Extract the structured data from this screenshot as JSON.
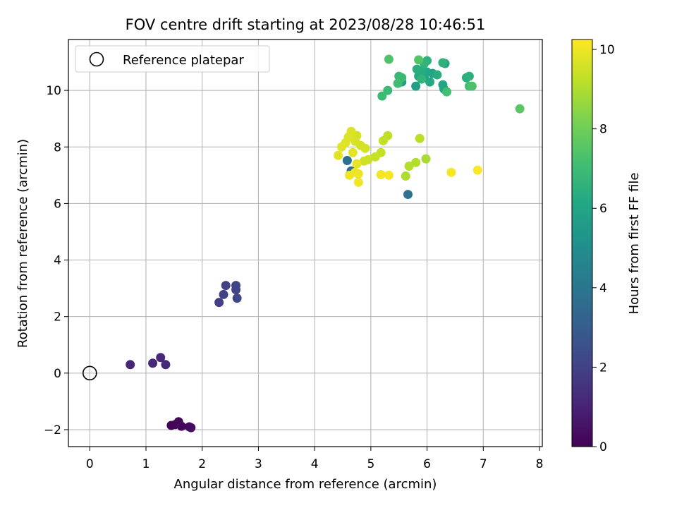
{
  "chart_data": {
    "type": "scatter",
    "title": "FOV centre drift starting at 2023/08/28 10:46:51",
    "xlabel": "Angular distance from reference (arcmin)",
    "ylabel": "Rotation from reference (arcmin)",
    "xlim": [
      -0.38,
      8.05
    ],
    "ylim": [
      -2.6,
      11.8
    ],
    "xticks": [
      "0",
      "1",
      "2",
      "3",
      "4",
      "5",
      "6",
      "7",
      "8"
    ],
    "yticks": [
      "−2",
      "0",
      "2",
      "4",
      "6",
      "8",
      "10"
    ],
    "grid": true,
    "legend": {
      "position": "top-left",
      "entries": [
        "Reference platepar"
      ]
    },
    "reference_point": {
      "x": 0,
      "y": 0
    },
    "colorbar": {
      "label": "Hours from first FF file",
      "range": [
        0,
        10.25
      ],
      "ticks": [
        "0",
        "2",
        "4",
        "6",
        "8",
        "10"
      ],
      "colormap": "viridis"
    },
    "points": [
      {
        "x": 1.45,
        "y": -1.85,
        "h": 0.05
      },
      {
        "x": 1.52,
        "y": -1.82,
        "h": 0.1
      },
      {
        "x": 1.58,
        "y": -1.72,
        "h": 0.15
      },
      {
        "x": 1.63,
        "y": -1.88,
        "h": 0.2
      },
      {
        "x": 1.77,
        "y": -1.9,
        "h": 0.25
      },
      {
        "x": 1.8,
        "y": -1.93,
        "h": 0.3
      },
      {
        "x": 0.72,
        "y": 0.3,
        "h": 1.1
      },
      {
        "x": 1.12,
        "y": 0.35,
        "h": 1.15
      },
      {
        "x": 1.26,
        "y": 0.55,
        "h": 1.2
      },
      {
        "x": 1.35,
        "y": 0.3,
        "h": 1.25
      },
      {
        "x": 2.3,
        "y": 2.5,
        "h": 1.9
      },
      {
        "x": 2.38,
        "y": 2.78,
        "h": 1.95
      },
      {
        "x": 2.42,
        "y": 3.1,
        "h": 2.0
      },
      {
        "x": 2.6,
        "y": 3.1,
        "h": 2.05
      },
      {
        "x": 2.6,
        "y": 2.95,
        "h": 2.1
      },
      {
        "x": 2.62,
        "y": 2.65,
        "h": 2.15
      },
      {
        "x": 4.58,
        "y": 7.52,
        "h": 3.7
      },
      {
        "x": 4.65,
        "y": 7.15,
        "h": 3.75
      },
      {
        "x": 5.66,
        "y": 6.32,
        "h": 3.85
      },
      {
        "x": 5.55,
        "y": 10.3,
        "h": 5.6
      },
      {
        "x": 5.8,
        "y": 10.15,
        "h": 5.7
      },
      {
        "x": 5.95,
        "y": 10.45,
        "h": 5.8
      },
      {
        "x": 6.1,
        "y": 10.6,
        "h": 5.9
      },
      {
        "x": 6.28,
        "y": 10.2,
        "h": 6.0
      },
      {
        "x": 6.3,
        "y": 10.05,
        "h": 6.05
      },
      {
        "x": 6.32,
        "y": 10.95,
        "h": 6.1
      },
      {
        "x": 6.0,
        "y": 10.65,
        "h": 6.15
      },
      {
        "x": 6.05,
        "y": 10.3,
        "h": 6.2
      },
      {
        "x": 5.85,
        "y": 10.5,
        "h": 6.25
      },
      {
        "x": 5.9,
        "y": 10.7,
        "h": 6.3
      },
      {
        "x": 6.18,
        "y": 10.55,
        "h": 6.35
      },
      {
        "x": 5.82,
        "y": 10.75,
        "h": 6.4
      },
      {
        "x": 6.7,
        "y": 10.45,
        "h": 6.45
      },
      {
        "x": 6.75,
        "y": 10.5,
        "h": 6.5
      },
      {
        "x": 6.0,
        "y": 11.05,
        "h": 6.55
      },
      {
        "x": 6.28,
        "y": 10.98,
        "h": 6.6
      },
      {
        "x": 5.95,
        "y": 10.95,
        "h": 6.65
      },
      {
        "x": 5.9,
        "y": 10.4,
        "h": 6.7
      },
      {
        "x": 5.5,
        "y": 10.5,
        "h": 6.8
      },
      {
        "x": 5.55,
        "y": 10.45,
        "h": 6.85
      },
      {
        "x": 5.3,
        "y": 10.0,
        "h": 6.9
      },
      {
        "x": 5.2,
        "y": 9.8,
        "h": 7.0
      },
      {
        "x": 5.48,
        "y": 10.25,
        "h": 7.05
      },
      {
        "x": 6.35,
        "y": 9.95,
        "h": 7.1
      },
      {
        "x": 6.75,
        "y": 10.15,
        "h": 7.2
      },
      {
        "x": 6.8,
        "y": 10.15,
        "h": 7.3
      },
      {
        "x": 5.32,
        "y": 11.1,
        "h": 7.4
      },
      {
        "x": 5.85,
        "y": 11.08,
        "h": 7.45
      },
      {
        "x": 7.65,
        "y": 9.35,
        "h": 7.6
      },
      {
        "x": 5.98,
        "y": 7.58,
        "h": 8.9
      },
      {
        "x": 5.62,
        "y": 6.97,
        "h": 9.0
      },
      {
        "x": 5.8,
        "y": 7.45,
        "h": 9.05
      },
      {
        "x": 5.68,
        "y": 7.32,
        "h": 9.1
      },
      {
        "x": 5.87,
        "y": 8.3,
        "h": 9.2
      },
      {
        "x": 5.3,
        "y": 8.4,
        "h": 9.25
      },
      {
        "x": 5.22,
        "y": 8.22,
        "h": 9.3
      },
      {
        "x": 5.18,
        "y": 7.8,
        "h": 9.35
      },
      {
        "x": 5.08,
        "y": 7.65,
        "h": 9.4
      },
      {
        "x": 4.95,
        "y": 7.55,
        "h": 9.45
      },
      {
        "x": 4.88,
        "y": 7.5,
        "h": 9.5
      },
      {
        "x": 4.82,
        "y": 8.05,
        "h": 9.55
      },
      {
        "x": 4.9,
        "y": 7.95,
        "h": 9.6
      },
      {
        "x": 4.75,
        "y": 8.4,
        "h": 9.6
      },
      {
        "x": 4.72,
        "y": 8.2,
        "h": 9.65
      },
      {
        "x": 4.65,
        "y": 8.55,
        "h": 9.7
      },
      {
        "x": 4.6,
        "y": 8.35,
        "h": 9.7
      },
      {
        "x": 4.55,
        "y": 8.15,
        "h": 9.75
      },
      {
        "x": 4.48,
        "y": 8.0,
        "h": 9.8
      },
      {
        "x": 4.42,
        "y": 7.7,
        "h": 9.8
      },
      {
        "x": 4.68,
        "y": 7.8,
        "h": 9.85
      },
      {
        "x": 4.75,
        "y": 7.4,
        "h": 9.9
      },
      {
        "x": 4.72,
        "y": 7.1,
        "h": 9.95
      },
      {
        "x": 4.78,
        "y": 7.05,
        "h": 10.0
      },
      {
        "x": 4.62,
        "y": 7.0,
        "h": 10.0
      },
      {
        "x": 4.78,
        "y": 6.75,
        "h": 10.05
      },
      {
        "x": 5.18,
        "y": 7.02,
        "h": 10.1
      },
      {
        "x": 5.32,
        "y": 7.0,
        "h": 10.1
      },
      {
        "x": 6.43,
        "y": 7.1,
        "h": 10.15
      },
      {
        "x": 6.9,
        "y": 7.18,
        "h": 10.2
      }
    ]
  }
}
